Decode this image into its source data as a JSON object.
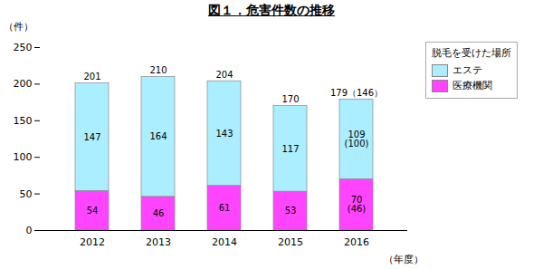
{
  "chart_data": {
    "type": "bar",
    "title": "図１．危害件数の推移",
    "categories": [
      "2012",
      "2013",
      "2014",
      "2015",
      "2016"
    ],
    "series": [
      {
        "name": "エステ",
        "color": "#aaeeff",
        "values": [
          147,
          164,
          143,
          117,
          109
        ],
        "value_labels": [
          "147",
          "164",
          "143",
          "117",
          "109\n(100)"
        ]
      },
      {
        "name": "医療機関",
        "color": "#ff44ff",
        "values": [
          54,
          46,
          61,
          53,
          70
        ],
        "value_labels": [
          "54",
          "46",
          "61",
          "53",
          "70\n(46)"
        ]
      }
    ],
    "totals": [
      201,
      210,
      204,
      170,
      179
    ],
    "total_labels": [
      "201",
      "210",
      "204",
      "170",
      "179（146）"
    ],
    "stacked": true,
    "data_labels": true,
    "xlabel": "（年度）",
    "ylabel": "（件）",
    "ylim": [
      0,
      250
    ],
    "yticks": [
      0,
      50,
      100,
      150,
      200,
      250
    ],
    "legend": "upper right",
    "legend_title": "脱毛を受けた場所",
    "grid": false
  }
}
